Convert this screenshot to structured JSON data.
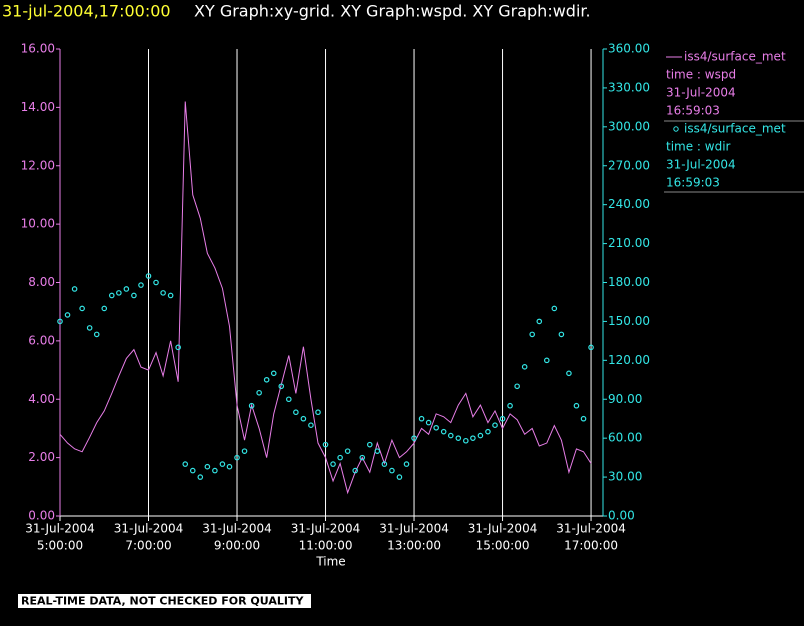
{
  "chart_data": {
    "type": "line-scatter",
    "title_time": "31-jul-2004,17:00:00",
    "title": "XY Graph:xy-grid.  XY Graph:wspd.  XY Graph:wdir.",
    "xlabel": "Time",
    "footer": "REAL-TIME DATA, NOT CHECKED FOR QUALITY",
    "grid": true,
    "xlim": [
      5,
      17.27
    ],
    "xtick_date": "31-Jul-2004",
    "xticks": [
      {
        "value": 5,
        "label": "5:00:00"
      },
      {
        "value": 7,
        "label": "7:00:00"
      },
      {
        "value": 9,
        "label": "9:00:00"
      },
      {
        "value": 11,
        "label": "11:00:00"
      },
      {
        "value": 13,
        "label": "13:00:00"
      },
      {
        "value": 15,
        "label": "15:00:00"
      },
      {
        "value": 17,
        "label": "17:00:00"
      }
    ],
    "ylim": [
      0,
      16
    ],
    "yticks": [
      {
        "value": 0,
        "label": "0.00"
      },
      {
        "value": 2,
        "label": "2.00"
      },
      {
        "value": 4,
        "label": "4.00"
      },
      {
        "value": 6,
        "label": "6.00"
      },
      {
        "value": 8,
        "label": "8.00"
      },
      {
        "value": 10,
        "label": "10.00"
      },
      {
        "value": 12,
        "label": "12.00"
      },
      {
        "value": 14,
        "label": "14.00"
      },
      {
        "value": 16,
        "label": "16.00"
      }
    ],
    "y2lim": [
      0,
      360
    ],
    "y2ticks": [
      {
        "value": 0,
        "label": "0.00"
      },
      {
        "value": 30,
        "label": "30.00"
      },
      {
        "value": 60,
        "label": "60.00"
      },
      {
        "value": 90,
        "label": "90.00"
      },
      {
        "value": 120,
        "label": "120.00"
      },
      {
        "value": 150,
        "label": "150.00"
      },
      {
        "value": 180,
        "label": "180.00"
      },
      {
        "value": 210,
        "label": "210.00"
      },
      {
        "value": 240,
        "label": "240.00"
      },
      {
        "value": 270,
        "label": "270.00"
      },
      {
        "value": 300,
        "label": "300.00"
      },
      {
        "value": 330,
        "label": "330.00"
      },
      {
        "value": 360,
        "label": "360.00"
      }
    ],
    "x": [
      5,
      5.17,
      5.33,
      5.5,
      5.67,
      5.83,
      6,
      6.17,
      6.33,
      6.5,
      6.67,
      6.83,
      7,
      7.17,
      7.33,
      7.5,
      7.67,
      7.83,
      8,
      8.17,
      8.33,
      8.5,
      8.67,
      8.83,
      9,
      9.17,
      9.33,
      9.5,
      9.67,
      9.83,
      10,
      10.17,
      10.33,
      10.5,
      10.67,
      10.83,
      11,
      11.17,
      11.33,
      11.5,
      11.67,
      11.83,
      12,
      12.17,
      12.33,
      12.5,
      12.67,
      12.83,
      13,
      13.17,
      13.33,
      13.5,
      13.67,
      13.83,
      14,
      14.17,
      14.33,
      14.5,
      14.67,
      14.83,
      15,
      15.17,
      15.33,
      15.5,
      15.67,
      15.83,
      16,
      16.17,
      16.33,
      16.5,
      16.67,
      16.83,
      17
    ],
    "series": [
      {
        "name": "iss4/surface_met",
        "variable": "time : wspd",
        "date": "31-Jul-2004",
        "time": "16:59:03",
        "color": "#e87ee8",
        "mark": "line",
        "axis": "y",
        "values": [
          2.8,
          2.5,
          2.3,
          2.2,
          2.7,
          3.2,
          3.6,
          4.2,
          4.8,
          5.4,
          5.7,
          5.1,
          5.0,
          5.6,
          4.8,
          6.0,
          4.6,
          14.2,
          11.0,
          10.2,
          9.0,
          8.5,
          7.8,
          6.5,
          3.8,
          2.6,
          3.8,
          3.0,
          2.0,
          3.5,
          4.5,
          5.5,
          4.2,
          5.8,
          4.0,
          2.5,
          2.0,
          1.2,
          1.8,
          0.8,
          1.5,
          2.0,
          1.5,
          2.5,
          1.8,
          2.6,
          2.0,
          2.2,
          2.5,
          3.0,
          2.8,
          3.5,
          3.4,
          3.2,
          3.8,
          4.2,
          3.4,
          3.8,
          3.2,
          3.6,
          3.0,
          3.5,
          3.3,
          2.8,
          3.0,
          2.4,
          2.5,
          3.1,
          2.6,
          1.5,
          2.3,
          2.2,
          1.8
        ]
      },
      {
        "name": "iss4/surface_met",
        "variable": "time : wdir",
        "date": "31-Jul-2004",
        "time": "16:59:03",
        "color": "#33e6e6",
        "mark": "circle",
        "axis": "y2",
        "values": [
          150,
          155,
          175,
          160,
          145,
          140,
          160,
          170,
          172,
          175,
          170,
          178,
          185,
          180,
          172,
          170,
          130,
          40,
          35,
          30,
          38,
          35,
          40,
          38,
          45,
          50,
          85,
          95,
          105,
          110,
          100,
          90,
          80,
          75,
          70,
          80,
          55,
          40,
          45,
          50,
          35,
          45,
          55,
          50,
          40,
          35,
          30,
          40,
          60,
          75,
          72,
          68,
          65,
          62,
          60,
          58,
          60,
          62,
          65,
          70,
          75,
          85,
          100,
          115,
          140,
          150,
          120,
          160,
          140,
          110,
          85,
          75,
          130
        ]
      }
    ]
  }
}
